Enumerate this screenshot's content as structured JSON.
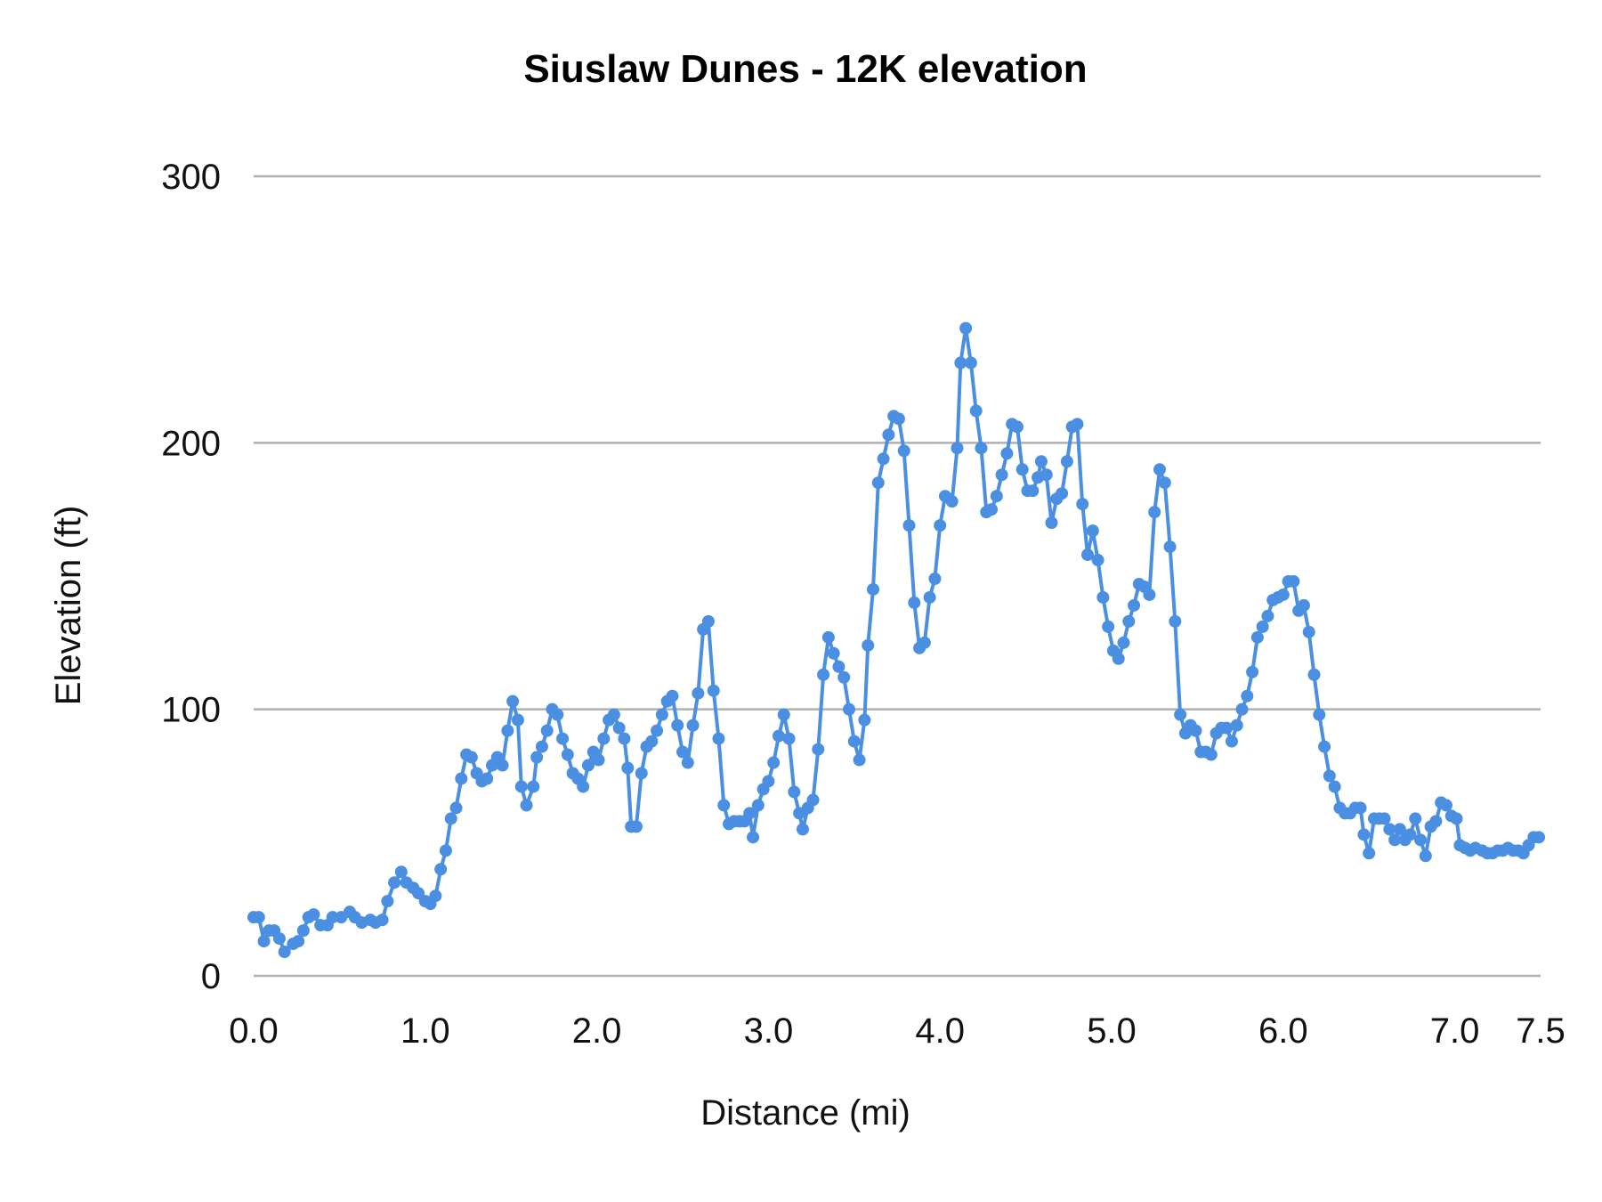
{
  "chart_data": {
    "type": "line",
    "title": "Siuslaw Dunes - 12K elevation",
    "xlabel": "Distance (mi)",
    "ylabel": "Elevation (ft)",
    "xlim": [
      0,
      7.5
    ],
    "ylim": [
      0,
      300
    ],
    "x_ticks": [
      "0.0",
      "1.0",
      "2.0",
      "3.0",
      "4.0",
      "5.0",
      "6.0",
      "7.0",
      "7.5"
    ],
    "y_ticks": [
      "0",
      "100",
      "200",
      "300"
    ],
    "grid": "horizontal",
    "markers": true,
    "series_color": "#4a8fe2",
    "grid_color": "#b0b0b0",
    "points": [
      [
        0.0,
        22
      ],
      [
        0.03,
        22
      ],
      [
        0.06,
        13
      ],
      [
        0.09,
        17
      ],
      [
        0.12,
        17
      ],
      [
        0.15,
        14
      ],
      [
        0.18,
        9
      ],
      [
        0.23,
        12
      ],
      [
        0.26,
        13
      ],
      [
        0.29,
        17
      ],
      [
        0.32,
        22
      ],
      [
        0.35,
        23
      ],
      [
        0.39,
        19
      ],
      [
        0.43,
        19
      ],
      [
        0.46,
        22
      ],
      [
        0.51,
        22
      ],
      [
        0.56,
        24
      ],
      [
        0.59,
        22
      ],
      [
        0.63,
        20
      ],
      [
        0.68,
        21
      ],
      [
        0.71,
        20
      ],
      [
        0.75,
        21
      ],
      [
        0.78,
        28
      ],
      [
        0.82,
        35
      ],
      [
        0.86,
        39
      ],
      [
        0.89,
        35
      ],
      [
        0.93,
        33
      ],
      [
        0.96,
        31
      ],
      [
        1.0,
        28
      ],
      [
        1.03,
        27
      ],
      [
        1.06,
        30
      ],
      [
        1.09,
        40
      ],
      [
        1.12,
        47
      ],
      [
        1.15,
        59
      ],
      [
        1.18,
        63
      ],
      [
        1.21,
        74
      ],
      [
        1.24,
        83
      ],
      [
        1.27,
        82
      ],
      [
        1.3,
        76
      ],
      [
        1.33,
        73
      ],
      [
        1.36,
        74
      ],
      [
        1.39,
        79
      ],
      [
        1.42,
        82
      ],
      [
        1.45,
        79
      ],
      [
        1.48,
        92
      ],
      [
        1.51,
        103
      ],
      [
        1.54,
        96
      ],
      [
        1.56,
        71
      ],
      [
        1.59,
        64
      ],
      [
        1.63,
        71
      ],
      [
        1.65,
        82
      ],
      [
        1.68,
        86
      ],
      [
        1.71,
        92
      ],
      [
        1.74,
        100
      ],
      [
        1.77,
        98
      ],
      [
        1.8,
        89
      ],
      [
        1.83,
        83
      ],
      [
        1.86,
        76
      ],
      [
        1.89,
        74
      ],
      [
        1.92,
        71
      ],
      [
        1.95,
        79
      ],
      [
        1.98,
        84
      ],
      [
        2.01,
        81
      ],
      [
        2.04,
        89
      ],
      [
        2.07,
        96
      ],
      [
        2.1,
        98
      ],
      [
        2.13,
        93
      ],
      [
        2.16,
        89
      ],
      [
        2.18,
        78
      ],
      [
        2.2,
        56
      ],
      [
        2.23,
        56
      ],
      [
        2.26,
        76
      ],
      [
        2.29,
        86
      ],
      [
        2.32,
        88
      ],
      [
        2.35,
        92
      ],
      [
        2.38,
        98
      ],
      [
        2.41,
        103
      ],
      [
        2.44,
        105
      ],
      [
        2.47,
        94
      ],
      [
        2.5,
        84
      ],
      [
        2.53,
        80
      ],
      [
        2.56,
        94
      ],
      [
        2.59,
        106
      ],
      [
        2.62,
        130
      ],
      [
        2.65,
        133
      ],
      [
        2.68,
        107
      ],
      [
        2.71,
        89
      ],
      [
        2.74,
        64
      ],
      [
        2.77,
        57
      ],
      [
        2.8,
        58
      ],
      [
        2.83,
        58
      ],
      [
        2.86,
        58
      ],
      [
        2.89,
        61
      ],
      [
        2.91,
        52
      ],
      [
        2.94,
        64
      ],
      [
        2.97,
        70
      ],
      [
        3.0,
        73
      ],
      [
        3.03,
        80
      ],
      [
        3.06,
        90
      ],
      [
        3.09,
        98
      ],
      [
        3.12,
        89
      ],
      [
        3.15,
        69
      ],
      [
        3.18,
        61
      ],
      [
        3.2,
        55
      ],
      [
        3.23,
        63
      ],
      [
        3.26,
        66
      ],
      [
        3.29,
        85
      ],
      [
        3.32,
        113
      ],
      [
        3.35,
        127
      ],
      [
        3.38,
        121
      ],
      [
        3.41,
        116
      ],
      [
        3.44,
        112
      ],
      [
        3.47,
        100
      ],
      [
        3.5,
        88
      ],
      [
        3.53,
        81
      ],
      [
        3.56,
        96
      ],
      [
        3.58,
        124
      ],
      [
        3.61,
        145
      ],
      [
        3.64,
        185
      ],
      [
        3.67,
        194
      ],
      [
        3.7,
        203
      ],
      [
        3.73,
        210
      ],
      [
        3.76,
        209
      ],
      [
        3.79,
        197
      ],
      [
        3.82,
        169
      ],
      [
        3.85,
        140
      ],
      [
        3.88,
        123
      ],
      [
        3.91,
        125
      ],
      [
        3.94,
        142
      ],
      [
        3.97,
        149
      ],
      [
        4.0,
        169
      ],
      [
        4.03,
        180
      ],
      [
        4.07,
        178
      ],
      [
        4.1,
        198
      ],
      [
        4.12,
        230
      ],
      [
        4.15,
        243
      ],
      [
        4.18,
        230
      ],
      [
        4.21,
        212
      ],
      [
        4.24,
        198
      ],
      [
        4.27,
        174
      ],
      [
        4.3,
        175
      ],
      [
        4.33,
        180
      ],
      [
        4.36,
        188
      ],
      [
        4.39,
        196
      ],
      [
        4.42,
        207
      ],
      [
        4.45,
        206
      ],
      [
        4.48,
        190
      ],
      [
        4.51,
        182
      ],
      [
        4.54,
        182
      ],
      [
        4.57,
        187
      ],
      [
        4.59,
        193
      ],
      [
        4.62,
        188
      ],
      [
        4.65,
        170
      ],
      [
        4.68,
        179
      ],
      [
        4.71,
        181
      ],
      [
        4.74,
        193
      ],
      [
        4.77,
        206
      ],
      [
        4.8,
        207
      ],
      [
        4.83,
        177
      ],
      [
        4.86,
        158
      ],
      [
        4.89,
        167
      ],
      [
        4.92,
        156
      ],
      [
        4.95,
        142
      ],
      [
        4.98,
        131
      ],
      [
        5.01,
        122
      ],
      [
        5.04,
        119
      ],
      [
        5.07,
        125
      ],
      [
        5.1,
        133
      ],
      [
        5.13,
        139
      ],
      [
        5.16,
        147
      ],
      [
        5.19,
        146
      ],
      [
        5.22,
        143
      ],
      [
        5.25,
        174
      ],
      [
        5.28,
        190
      ],
      [
        5.31,
        185
      ],
      [
        5.34,
        161
      ],
      [
        5.37,
        133
      ],
      [
        5.4,
        98
      ],
      [
        5.43,
        91
      ],
      [
        5.46,
        94
      ],
      [
        5.49,
        92
      ],
      [
        5.52,
        84
      ],
      [
        5.55,
        84
      ],
      [
        5.58,
        83
      ],
      [
        5.61,
        91
      ],
      [
        5.64,
        93
      ],
      [
        5.67,
        93
      ],
      [
        5.7,
        88
      ],
      [
        5.73,
        94
      ],
      [
        5.76,
        100
      ],
      [
        5.79,
        105
      ],
      [
        5.82,
        114
      ],
      [
        5.85,
        127
      ],
      [
        5.88,
        131
      ],
      [
        5.91,
        135
      ],
      [
        5.94,
        141
      ],
      [
        5.97,
        142
      ],
      [
        6.0,
        143
      ],
      [
        6.03,
        148
      ],
      [
        6.06,
        148
      ],
      [
        6.09,
        137
      ],
      [
        6.12,
        139
      ],
      [
        6.15,
        129
      ],
      [
        6.18,
        113
      ],
      [
        6.21,
        98
      ],
      [
        6.24,
        86
      ],
      [
        6.27,
        75
      ],
      [
        6.3,
        71
      ],
      [
        6.33,
        63
      ],
      [
        6.36,
        61
      ],
      [
        6.39,
        61
      ],
      [
        6.42,
        63
      ],
      [
        6.45,
        63
      ],
      [
        6.47,
        53
      ],
      [
        6.5,
        46
      ],
      [
        6.53,
        59
      ],
      [
        6.56,
        59
      ],
      [
        6.59,
        59
      ],
      [
        6.62,
        55
      ],
      [
        6.65,
        51
      ],
      [
        6.68,
        55
      ],
      [
        6.71,
        51
      ],
      [
        6.74,
        53
      ],
      [
        6.77,
        59
      ],
      [
        6.8,
        51
      ],
      [
        6.83,
        45
      ],
      [
        6.86,
        56
      ],
      [
        6.89,
        58
      ],
      [
        6.92,
        65
      ],
      [
        6.95,
        64
      ],
      [
        6.98,
        60
      ],
      [
        7.01,
        59
      ],
      [
        7.03,
        49
      ],
      [
        7.06,
        48
      ],
      [
        7.09,
        47
      ],
      [
        7.12,
        48
      ],
      [
        7.16,
        47
      ],
      [
        7.19,
        46
      ],
      [
        7.22,
        46
      ],
      [
        7.25,
        47
      ],
      [
        7.28,
        47
      ],
      [
        7.31,
        48
      ],
      [
        7.34,
        47
      ],
      [
        7.37,
        47
      ],
      [
        7.4,
        46
      ],
      [
        7.43,
        49
      ],
      [
        7.46,
        52
      ],
      [
        7.49,
        52
      ]
    ]
  }
}
